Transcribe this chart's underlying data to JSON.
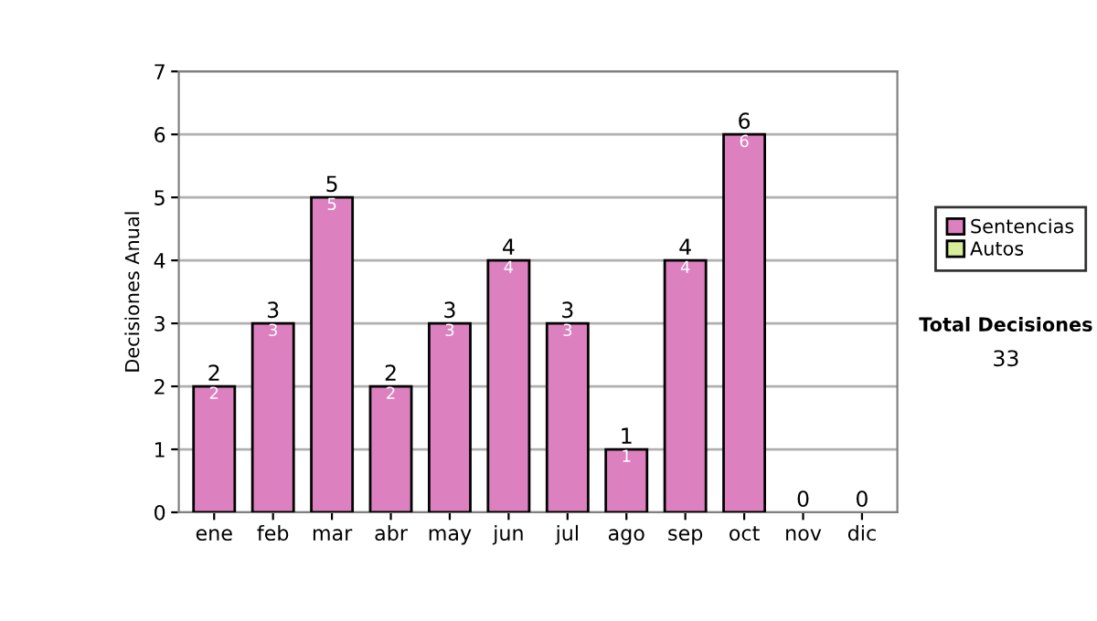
{
  "chart_data": {
    "type": "bar",
    "ylabel": "Decisiones Anual",
    "stacked": true,
    "categories": [
      "ene",
      "feb",
      "mar",
      "abr",
      "may",
      "jun",
      "jul",
      "ago",
      "sep",
      "oct",
      "nov",
      "dic"
    ],
    "series": [
      {
        "name": "Sentencias",
        "color": "#dd80c0",
        "values": [
          2,
          3,
          5,
          2,
          3,
          4,
          3,
          1,
          4,
          6,
          0,
          0
        ],
        "value_labels": [
          "2",
          "3",
          "5",
          "2",
          "3",
          "4",
          "3",
          "1",
          "4",
          "6",
          null,
          null
        ]
      },
      {
        "name": "Autos",
        "color": "#d8ec9c",
        "values": [
          0,
          0,
          0,
          0,
          0,
          0,
          0,
          0,
          0,
          0,
          0,
          0
        ]
      }
    ],
    "totals": [
      "2",
      "3",
      "5",
      "2",
      "3",
      "4",
      "3",
      "1",
      "4",
      "6",
      "0",
      "0"
    ],
    "ylim": [
      0,
      7
    ],
    "yticks": [
      0,
      1,
      2,
      3,
      4,
      5,
      6,
      7
    ],
    "grid": "y",
    "legend": "right",
    "annotations": [
      "Total Decisiones",
      "33"
    ]
  }
}
